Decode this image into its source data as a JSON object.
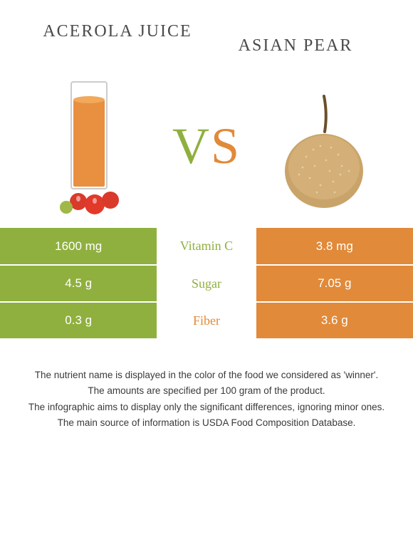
{
  "colors": {
    "left": "#8fb03e",
    "right": "#e08a3a",
    "text": "#4a4a4a",
    "row_text": "#ffffff"
  },
  "foods": {
    "left": {
      "name": "Acerola juice"
    },
    "right": {
      "name": "Asian pear"
    }
  },
  "vs_label": {
    "v": "V",
    "s": "S"
  },
  "nutrients": [
    {
      "label": "Vitamin C",
      "left": "1600 mg",
      "right": "3.8 mg",
      "winner": "left"
    },
    {
      "label": "Sugar",
      "left": "4.5 g",
      "right": "7.05 g",
      "winner": "left"
    },
    {
      "label": "Fiber",
      "left": "0.3 g",
      "right": "3.6 g",
      "winner": "right"
    }
  ],
  "footer_lines": [
    "The nutrient name is displayed in the color of the food we considered as 'winner'.",
    "The amounts are specified per 100 gram of the product.",
    "The infographic aims to display only the significant differences, ignoring minor ones.",
    "The main source of information is USDA Food Composition Database."
  ]
}
